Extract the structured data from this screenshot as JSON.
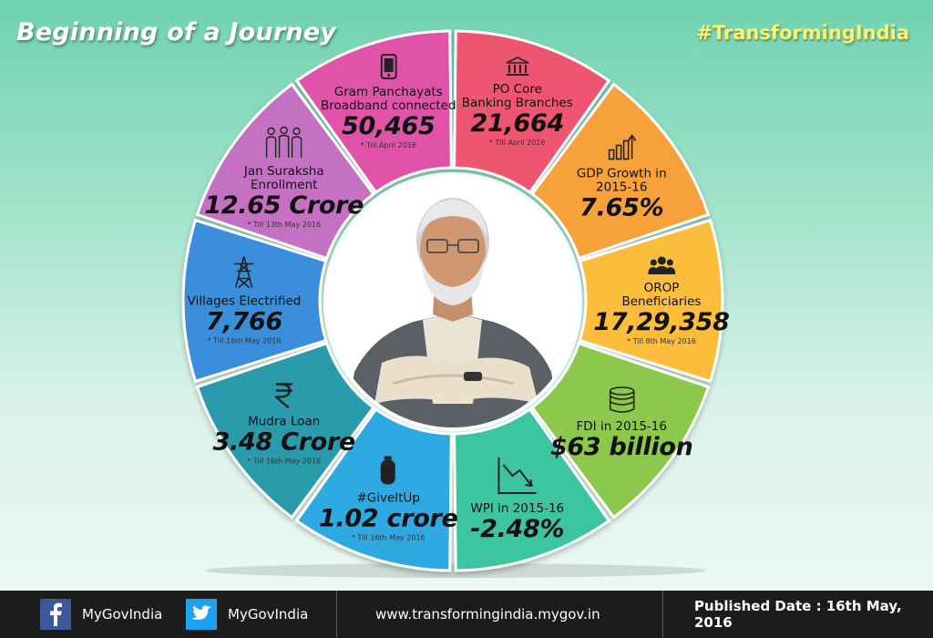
{
  "header": {
    "title": "Beginning of a Journey",
    "hashtag": "#TransformingIndia"
  },
  "segments": [
    {
      "label": [
        "PO Core",
        "Banking Branches"
      ],
      "value": "21,664",
      "note": "* Till April 2016",
      "icon": "bank-icon",
      "color": "#ee5570"
    },
    {
      "label": [
        "GDP Growth in",
        "2015-16"
      ],
      "value": "7.65%",
      "note": "",
      "icon": "bar-growth-icon",
      "color": "#f7a13a"
    },
    {
      "label": [
        "OROP",
        "Beneficiaries"
      ],
      "value": "17,29,358",
      "note": "* Till 8th May 2016",
      "icon": "group-icon",
      "color": "#fbbd3b"
    },
    {
      "label": [
        "FDI in 2015-16"
      ],
      "value": "$63 billion",
      "note": "",
      "icon": "coins-icon",
      "color": "#8cc84b"
    },
    {
      "label": [
        "WPI in 2015-16"
      ],
      "value": "-2.48%",
      "note": "",
      "icon": "decline-chart-icon",
      "color": "#3cc4a0"
    },
    {
      "label": [
        "#GiveItUp"
      ],
      "value": "1.02 crore",
      "note": "* Till 16th May 2016",
      "icon": "gas-cylinder-icon",
      "color": "#2ea9e2"
    },
    {
      "label": [
        "Mudra Loan"
      ],
      "value": "3.48 Crore",
      "note": "* Till 16th May 2016",
      "icon": "rupee-icon",
      "color": "#2a9bab"
    },
    {
      "label": [
        "Villages Electrified"
      ],
      "value": "7,766",
      "note": "* Till 16th May 2016",
      "icon": "power-tower-icon",
      "color": "#3b8edb"
    },
    {
      "label": [
        "Jan Suraksha",
        "Enrollment"
      ],
      "value": "12.65 Crore",
      "note": "* Till 13th May 2016",
      "icon": "people-icon",
      "color": "#c46fc3"
    },
    {
      "label": [
        "Gram Panchayats",
        "Broadband connected"
      ],
      "value": "50,465",
      "note": "* Till April 2016",
      "icon": "mobile-phone-icon",
      "color": "#e053a8"
    }
  ],
  "footer": {
    "facebook": "MyGovIndia",
    "twitter": "MyGovIndia",
    "website": "www.transformingindia.mygov.in",
    "published": "Published Date : 16th May, 2016"
  },
  "colors": {
    "background_top": "#6fd3b0",
    "footer_bg": "#1c1c1c",
    "hashtag": "#fff36a",
    "facebook": "#3b5998",
    "twitter": "#1da1f2"
  }
}
